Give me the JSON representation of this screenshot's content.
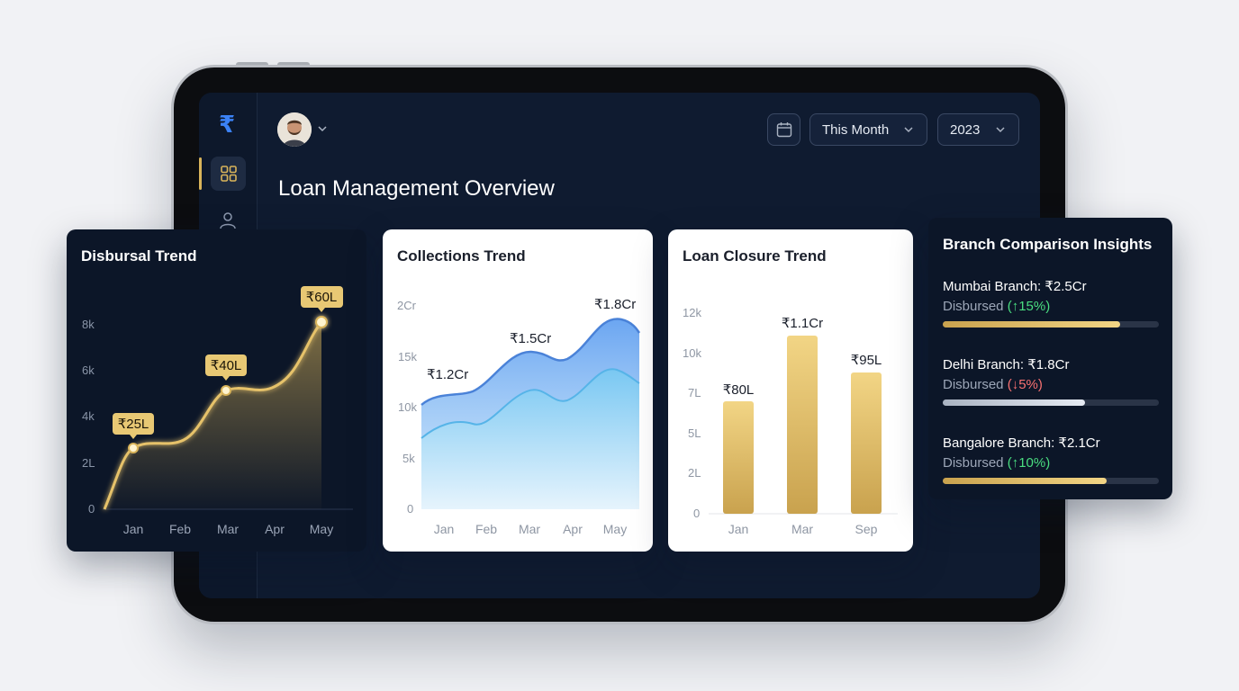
{
  "app": {
    "logo_glyph": "₹",
    "title": "Loan Management Overview"
  },
  "filters": {
    "period": "This Month",
    "year": "2023"
  },
  "icons": {
    "logo": "rupee-icon",
    "dashboard": "grid-icon",
    "users": "user-icon",
    "calendar": "calendar-icon",
    "caret": "chevron-down-icon"
  },
  "colors": {
    "gold": "#d9b45a",
    "blue": "#3b82f6",
    "navy": "#0f1b30",
    "up": "#4ade80",
    "down": "#f87171"
  },
  "disbursal": {
    "title": "Disbursal Trend",
    "chart_data": {
      "type": "area",
      "categories": [
        "Jan",
        "Feb",
        "Mar",
        "Apr",
        "May"
      ],
      "y_ticks": [
        "0",
        "2L",
        "4k",
        "6k",
        "8k"
      ],
      "points": [
        {
          "label": "₹25L"
        },
        {
          "label": "₹40L"
        },
        {
          "label": "₹60L"
        }
      ]
    }
  },
  "collections": {
    "title": "Collections Trend",
    "chart_data": {
      "type": "area",
      "categories": [
        "Jan",
        "Feb",
        "Mar",
        "Apr",
        "May"
      ],
      "y_ticks": [
        "0",
        "5k",
        "10k",
        "15k",
        "2Cr"
      ],
      "labels": [
        "₹1.2Cr",
        "₹1.5Cr",
        "₹1.8Cr"
      ]
    }
  },
  "closure": {
    "title": "Loan Closure Trend",
    "chart_data": {
      "type": "bar",
      "categories": [
        "Jan",
        "Mar",
        "Sep"
      ],
      "y_ticks": [
        "0",
        "2L",
        "5L",
        "7L",
        "10k",
        "12k"
      ],
      "labels": [
        "₹80L",
        "₹1.1Cr",
        "₹95L"
      ]
    }
  },
  "branches": {
    "title": "Branch Comparison Insights",
    "items": [
      {
        "name": "Mumbai Branch: ₹2.5Cr",
        "sub": "Disbursed",
        "change": "(↑15%)",
        "trend": "up",
        "progress": 0.82
      },
      {
        "name": "Delhi Branch: ₹1.8Cr",
        "sub": "Disbursed",
        "change": "(↓5%)",
        "trend": "down",
        "progress": 0.66
      },
      {
        "name": "Bangalore Branch: ₹2.1Cr",
        "sub": "Disbursed",
        "change": "(↑10%)",
        "trend": "up",
        "progress": 0.76
      }
    ]
  }
}
